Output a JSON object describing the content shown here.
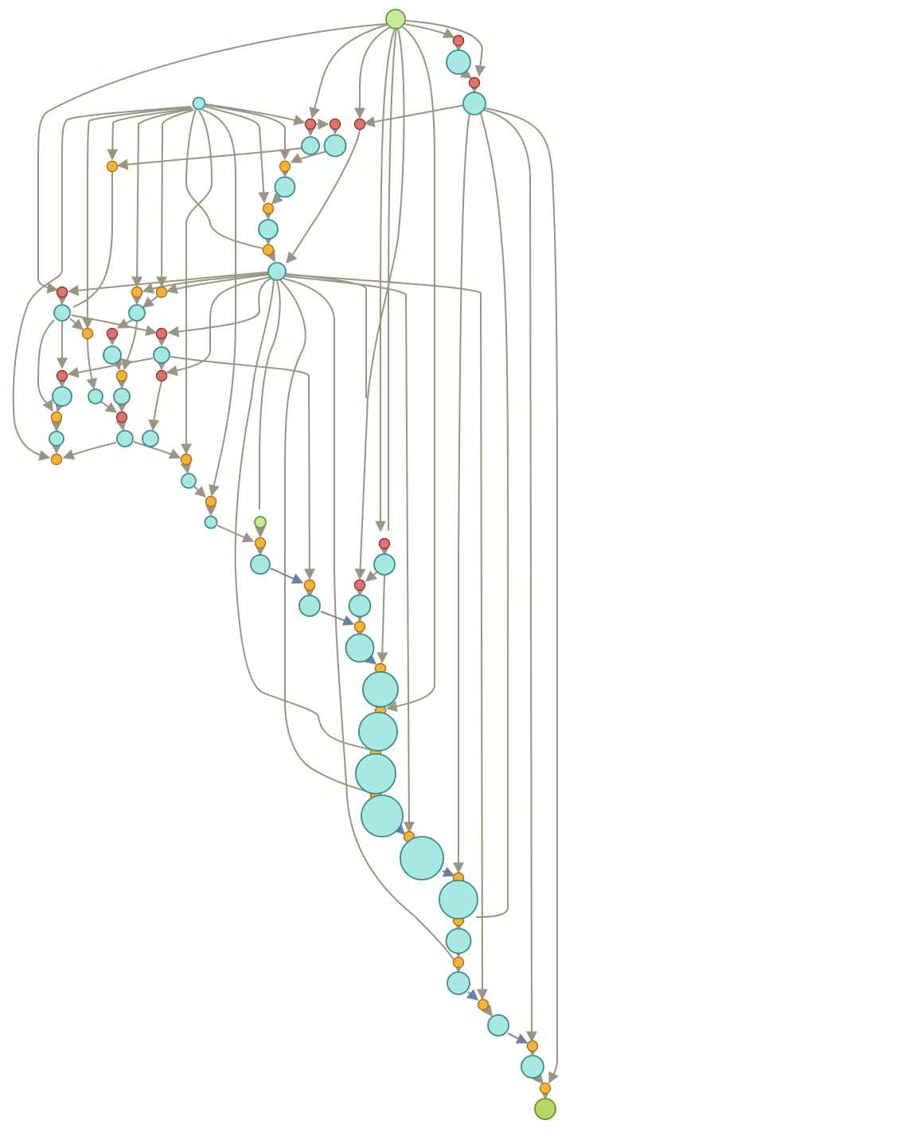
{
  "colors": {
    "background": "#ffffff",
    "edge": "#9a9482",
    "edge_primary": "#6f7fa0",
    "node_data": "#a8e8e4",
    "node_data_stroke": "#3f8a86",
    "node_source": "#c6e9a0",
    "node_source_stroke": "#6a9a3a",
    "node_sink": "#b6d66a",
    "node_sink_stroke": "#6f8f2a",
    "node_op_orange": "#f5b33a",
    "node_op_orange_stroke": "#a8741a",
    "node_op_red": "#e0726e",
    "node_op_red_stroke": "#8a3a36"
  },
  "diagram": {
    "type": "directed-graph",
    "node_kinds": [
      "source",
      "sink",
      "data",
      "op-orange",
      "op-red"
    ],
    "labels": []
  }
}
